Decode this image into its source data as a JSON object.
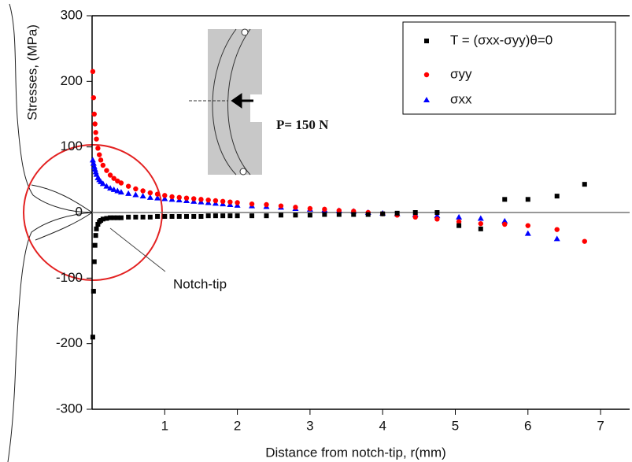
{
  "chart_data": {
    "type": "scatter",
    "x_label": "Distance from notch-tip, r(mm)",
    "y_label": "Stresses, (MPa)",
    "xlim": [
      0,
      7.4
    ],
    "ylim": [
      -300,
      300
    ],
    "xticks": [
      1,
      2,
      3,
      4,
      5,
      6,
      7
    ],
    "yticks": [
      -300,
      -200,
      -100,
      0,
      100,
      200,
      300
    ],
    "zero_line": true,
    "legend": "upper right",
    "annotations": [
      "Notch-tip",
      "P= 150 N"
    ],
    "x": [
      0.01,
      0.02,
      0.03,
      0.04,
      0.05,
      0.06,
      0.08,
      0.1,
      0.12,
      0.15,
      0.2,
      0.25,
      0.3,
      0.35,
      0.4,
      0.5,
      0.6,
      0.7,
      0.8,
      0.9,
      1.0,
      1.1,
      1.2,
      1.3,
      1.4,
      1.5,
      1.6,
      1.7,
      1.8,
      1.9,
      2.0,
      2.2,
      2.4,
      2.6,
      2.8,
      3.0,
      3.2,
      3.4,
      3.6,
      3.8,
      4.0,
      4.2,
      4.45,
      4.75,
      5.05,
      5.35,
      5.68,
      6.0,
      6.4,
      6.78
    ],
    "series": [
      {
        "name": "T = (σxx-σyy)θ=0",
        "color": "#000000",
        "marker": "square",
        "values": [
          -190,
          -120,
          -75,
          -50,
          -35,
          -25,
          -18,
          -14,
          -12,
          -10,
          -9,
          -8,
          -8,
          -8,
          -8,
          -7,
          -7,
          -7,
          -7,
          -6,
          -6,
          -6,
          -6,
          -6,
          -6,
          -6,
          -5,
          -5,
          -5,
          -5,
          -5,
          -5,
          -5,
          -4,
          -4,
          -4,
          -3,
          -3,
          -3,
          -3,
          -2,
          -1,
          0,
          0,
          -20,
          -25,
          20,
          20,
          25,
          43
        ]
      },
      {
        "name": "σyy",
        "color": "#ff0000",
        "marker": "circle",
        "values": [
          215,
          175,
          150,
          135,
          122,
          112,
          98,
          88,
          80,
          72,
          64,
          57,
          52,
          48,
          45,
          40,
          36,
          33,
          30,
          28,
          26,
          24,
          23,
          22,
          21,
          20,
          19,
          18,
          17,
          16,
          15,
          13,
          12,
          10,
          8,
          6,
          5,
          3,
          2,
          0,
          -2,
          -4,
          -7,
          -10,
          -14,
          -17,
          -18,
          -20,
          -26,
          -44
        ]
      },
      {
        "name": "σxx",
        "color": "#0000ff",
        "marker": "triangle",
        "values": [
          80,
          75,
          70,
          66,
          62,
          58,
          53,
          50,
          47,
          44,
          40,
          37,
          35,
          33,
          31,
          29,
          27,
          25,
          23,
          22,
          21,
          20,
          19,
          18,
          17,
          16,
          15,
          14,
          13,
          12,
          11,
          10,
          9,
          8,
          6,
          5,
          4,
          3,
          2,
          0,
          -1,
          -2,
          -3,
          -5,
          -7,
          -9,
          -13,
          -32,
          -40,
          null
        ]
      }
    ]
  }
}
